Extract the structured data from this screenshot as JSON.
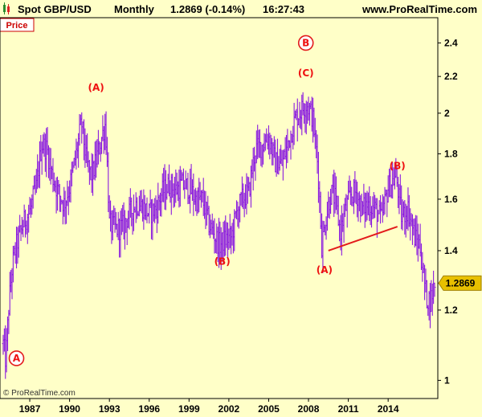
{
  "header": {
    "symbol": "Spot GBP/USD",
    "timeframe": "Monthly",
    "price_change": "1.2869 (-0.14%)",
    "time": "16:27:43",
    "website": "www.ProRealTime.com"
  },
  "panel_label": "Price",
  "copyright": "© ProRealTime.com",
  "last_price": "1.2869",
  "colors": {
    "background": "#ffffc8",
    "series": "#8a1adf",
    "annotation": "#e31b1b",
    "last_price_bg": "#e8c000"
  },
  "icons": [
    "candlestick-icon"
  ],
  "chart_data": {
    "type": "bar",
    "title": "Spot GBP/USD",
    "frequency": "Monthly",
    "y_scale": "log",
    "ylim": [
      0.97,
      2.52
    ],
    "xlim": [
      1985.0,
      2017.5
    ],
    "y_ticks": [
      "1",
      "1.2",
      "1.4",
      "1.6",
      "1.8",
      "2",
      "2.2",
      "2.4"
    ],
    "x_ticks": [
      "1987",
      "1990",
      "1993",
      "1996",
      "1999",
      "2002",
      "2005",
      "2008",
      "2011",
      "2014"
    ],
    "series": [
      {
        "points": [
          [
            1985.0,
            1.1
          ],
          [
            1985.2,
            1.05
          ],
          [
            1985.4,
            1.2
          ],
          [
            1985.7,
            1.35
          ],
          [
            1986.0,
            1.42
          ],
          [
            1986.5,
            1.5
          ],
          [
            1987.0,
            1.55
          ],
          [
            1987.5,
            1.65
          ],
          [
            1987.9,
            1.85
          ],
          [
            1988.3,
            1.82
          ],
          [
            1988.7,
            1.7
          ],
          [
            1989.2,
            1.62
          ],
          [
            1989.6,
            1.58
          ],
          [
            1990.0,
            1.65
          ],
          [
            1990.5,
            1.8
          ],
          [
            1990.9,
            1.95
          ],
          [
            1991.3,
            1.75
          ],
          [
            1991.7,
            1.7
          ],
          [
            1992.2,
            1.82
          ],
          [
            1992.7,
            1.95
          ],
          [
            1993.0,
            1.5
          ],
          [
            1993.5,
            1.48
          ],
          [
            1994.0,
            1.49
          ],
          [
            1994.5,
            1.54
          ],
          [
            1995.0,
            1.58
          ],
          [
            1995.5,
            1.57
          ],
          [
            1996.0,
            1.54
          ],
          [
            1996.5,
            1.56
          ],
          [
            1997.0,
            1.63
          ],
          [
            1997.5,
            1.66
          ],
          [
            1998.0,
            1.64
          ],
          [
            1998.5,
            1.66
          ],
          [
            1999.0,
            1.65
          ],
          [
            1999.5,
            1.6
          ],
          [
            2000.0,
            1.6
          ],
          [
            2000.5,
            1.5
          ],
          [
            2001.0,
            1.45
          ],
          [
            2001.3,
            1.42
          ],
          [
            2001.7,
            1.44
          ],
          [
            2002.2,
            1.45
          ],
          [
            2002.6,
            1.55
          ],
          [
            2003.0,
            1.6
          ],
          [
            2003.5,
            1.63
          ],
          [
            2004.0,
            1.82
          ],
          [
            2004.5,
            1.84
          ],
          [
            2005.0,
            1.88
          ],
          [
            2005.5,
            1.76
          ],
          [
            2006.0,
            1.75
          ],
          [
            2006.5,
            1.86
          ],
          [
            2007.0,
            1.97
          ],
          [
            2007.5,
            2.02
          ],
          [
            2007.9,
            2.05
          ],
          [
            2008.3,
            1.98
          ],
          [
            2008.7,
            1.75
          ],
          [
            2009.0,
            1.42
          ],
          [
            2009.3,
            1.52
          ],
          [
            2009.7,
            1.63
          ],
          [
            2010.0,
            1.6
          ],
          [
            2010.4,
            1.47
          ],
          [
            2010.8,
            1.56
          ],
          [
            2011.2,
            1.62
          ],
          [
            2011.6,
            1.63
          ],
          [
            2012.0,
            1.56
          ],
          [
            2012.5,
            1.58
          ],
          [
            2013.0,
            1.56
          ],
          [
            2013.5,
            1.52
          ],
          [
            2014.0,
            1.65
          ],
          [
            2014.6,
            1.7
          ],
          [
            2015.0,
            1.53
          ],
          [
            2015.5,
            1.56
          ],
          [
            2016.0,
            1.45
          ],
          [
            2016.4,
            1.42
          ],
          [
            2016.6,
            1.33
          ],
          [
            2016.9,
            1.24
          ],
          [
            2017.2,
            1.23
          ],
          [
            2017.5,
            1.2869
          ]
        ]
      }
    ],
    "annotations": [
      {
        "text": "A",
        "x": 1986.0,
        "y": 1.05,
        "circled": true
      },
      {
        "text": "(A)",
        "x": 1992.0,
        "y": 2.12
      },
      {
        "text": "(B)",
        "x": 2001.5,
        "y": 1.35
      },
      {
        "text": "B",
        "x": 2007.8,
        "y": 2.38,
        "circled": true
      },
      {
        "text": "(C)",
        "x": 2007.8,
        "y": 2.2
      },
      {
        "text": "(A)",
        "x": 2009.2,
        "y": 1.32
      },
      {
        "text": "(B)",
        "x": 2014.7,
        "y": 1.73
      }
    ],
    "trendlines": [
      {
        "from": [
          2009.5,
          1.4
        ],
        "to": [
          2014.7,
          1.49
        ]
      }
    ]
  }
}
